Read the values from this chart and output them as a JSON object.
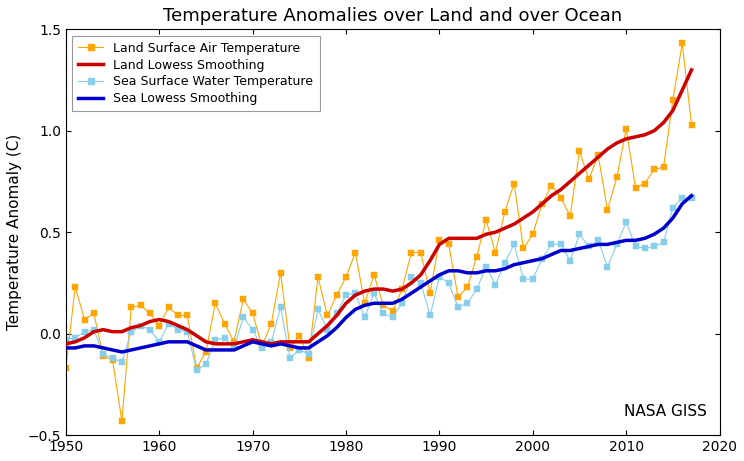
{
  "title": "Temperature Anomalies over Land and over Ocean",
  "ylabel": "Temperature Anomaly (C)",
  "xlim": [
    1950,
    2020
  ],
  "ylim": [
    -0.5,
    1.5
  ],
  "xticks": [
    1950,
    1960,
    1970,
    1980,
    1990,
    2000,
    2010,
    2020
  ],
  "yticks": [
    -0.5,
    0.0,
    0.5,
    1.0,
    1.5
  ],
  "nasa_label": "NASA GISS",
  "legend_labels": [
    "Land Surface Air Temperature",
    "Land Lowess Smoothing",
    "Sea Surface Water Temperature",
    "Sea Lowess Smoothing"
  ],
  "land_color": "#FFA500",
  "land_smooth_color": "#CC0000",
  "sea_color": "#87CEEB",
  "sea_smooth_color": "#0000CC",
  "years": [
    1950,
    1951,
    1952,
    1953,
    1954,
    1955,
    1956,
    1957,
    1958,
    1959,
    1960,
    1961,
    1962,
    1963,
    1964,
    1965,
    1966,
    1967,
    1968,
    1969,
    1970,
    1971,
    1972,
    1973,
    1974,
    1975,
    1976,
    1977,
    1978,
    1979,
    1980,
    1981,
    1982,
    1983,
    1984,
    1985,
    1986,
    1987,
    1988,
    1989,
    1990,
    1991,
    1992,
    1993,
    1994,
    1995,
    1996,
    1997,
    1998,
    1999,
    2000,
    2001,
    2002,
    2003,
    2004,
    2005,
    2006,
    2007,
    2008,
    2009,
    2010,
    2011,
    2012,
    2013,
    2014,
    2015,
    2016,
    2017
  ],
  "land_anomaly": [
    -0.17,
    0.23,
    0.07,
    0.1,
    -0.11,
    -0.13,
    -0.43,
    0.13,
    0.14,
    0.1,
    0.04,
    0.13,
    0.09,
    0.09,
    -0.17,
    -0.09,
    0.15,
    0.05,
    -0.04,
    0.17,
    0.1,
    -0.06,
    0.05,
    0.3,
    -0.07,
    -0.01,
    -0.12,
    0.28,
    0.09,
    0.19,
    0.28,
    0.4,
    0.15,
    0.29,
    0.14,
    0.11,
    0.22,
    0.4,
    0.4,
    0.2,
    0.46,
    0.44,
    0.18,
    0.23,
    0.38,
    0.56,
    0.4,
    0.6,
    0.74,
    0.42,
    0.49,
    0.64,
    0.73,
    0.67,
    0.58,
    0.9,
    0.76,
    0.88,
    0.61,
    0.77,
    1.01,
    0.72,
    0.74,
    0.81,
    0.82,
    1.15,
    1.43,
    1.03
  ],
  "sea_anomaly": [
    -0.03,
    -0.02,
    0.01,
    0.02,
    -0.1,
    -0.12,
    -0.14,
    0.01,
    0.04,
    0.02,
    -0.04,
    0.05,
    0.02,
    0.01,
    -0.18,
    -0.15,
    -0.03,
    -0.02,
    -0.07,
    0.08,
    0.02,
    -0.07,
    -0.04,
    0.13,
    -0.12,
    -0.08,
    -0.1,
    0.12,
    0.02,
    0.1,
    0.19,
    0.2,
    0.08,
    0.2,
    0.1,
    0.08,
    0.15,
    0.28,
    0.25,
    0.09,
    0.28,
    0.25,
    0.13,
    0.15,
    0.22,
    0.33,
    0.24,
    0.35,
    0.44,
    0.27,
    0.27,
    0.37,
    0.44,
    0.44,
    0.36,
    0.49,
    0.43,
    0.46,
    0.33,
    0.44,
    0.55,
    0.43,
    0.42,
    0.43,
    0.45,
    0.62,
    0.67,
    0.67
  ],
  "land_smooth": [
    -0.05,
    -0.04,
    -0.02,
    0.01,
    0.02,
    0.01,
    0.01,
    0.03,
    0.04,
    0.06,
    0.07,
    0.06,
    0.04,
    0.02,
    -0.01,
    -0.04,
    -0.05,
    -0.05,
    -0.05,
    -0.04,
    -0.03,
    -0.04,
    -0.05,
    -0.04,
    -0.04,
    -0.04,
    -0.04,
    0.0,
    0.04,
    0.09,
    0.15,
    0.19,
    0.21,
    0.22,
    0.22,
    0.21,
    0.22,
    0.25,
    0.29,
    0.36,
    0.44,
    0.47,
    0.47,
    0.47,
    0.47,
    0.49,
    0.5,
    0.52,
    0.54,
    0.57,
    0.6,
    0.64,
    0.68,
    0.71,
    0.75,
    0.79,
    0.83,
    0.87,
    0.91,
    0.94,
    0.96,
    0.97,
    0.98,
    1.0,
    1.04,
    1.1,
    1.2,
    1.3
  ],
  "sea_smooth": [
    -0.07,
    -0.07,
    -0.06,
    -0.06,
    -0.07,
    -0.08,
    -0.09,
    -0.08,
    -0.07,
    -0.06,
    -0.05,
    -0.04,
    -0.04,
    -0.04,
    -0.06,
    -0.08,
    -0.08,
    -0.08,
    -0.08,
    -0.06,
    -0.04,
    -0.05,
    -0.06,
    -0.05,
    -0.06,
    -0.07,
    -0.07,
    -0.04,
    -0.01,
    0.03,
    0.08,
    0.12,
    0.14,
    0.15,
    0.15,
    0.15,
    0.17,
    0.2,
    0.23,
    0.26,
    0.29,
    0.31,
    0.31,
    0.3,
    0.3,
    0.31,
    0.31,
    0.32,
    0.34,
    0.35,
    0.36,
    0.37,
    0.39,
    0.41,
    0.41,
    0.42,
    0.43,
    0.44,
    0.44,
    0.45,
    0.46,
    0.46,
    0.47,
    0.49,
    0.52,
    0.57,
    0.64,
    0.68
  ],
  "background_color": "#ffffff",
  "figsize": [
    7.44,
    4.61
  ],
  "dpi": 100
}
